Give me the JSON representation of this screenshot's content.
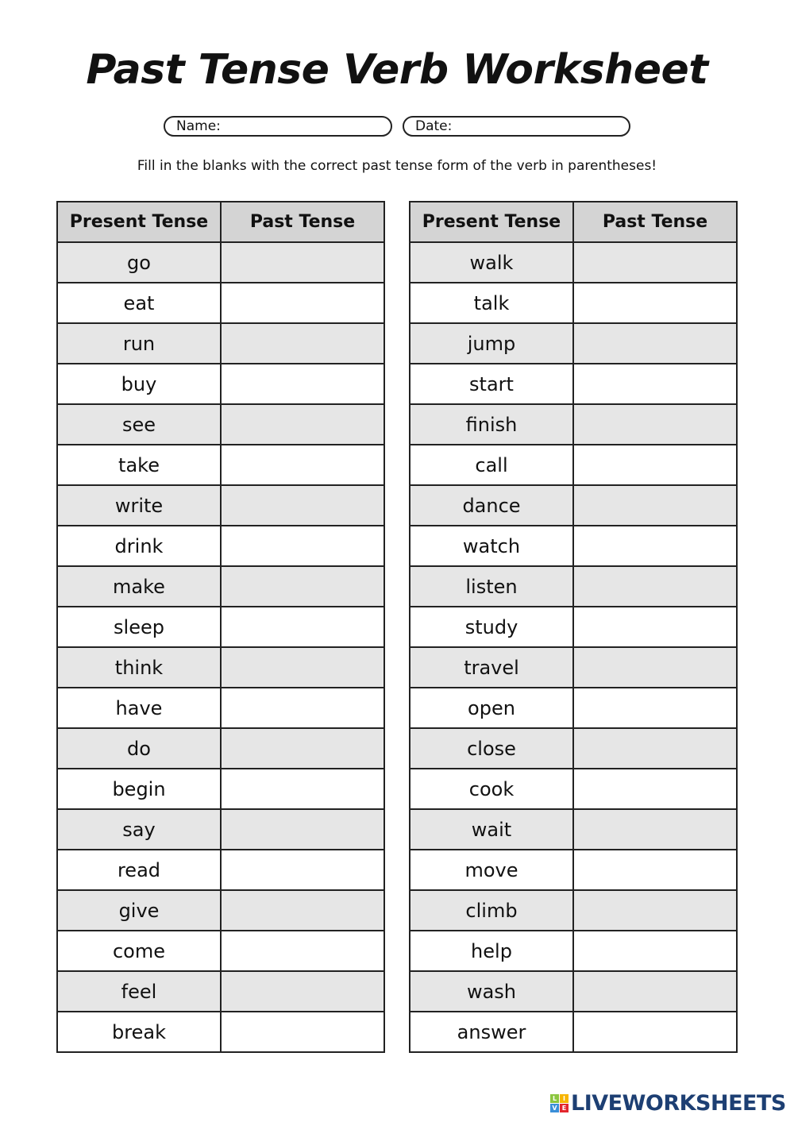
{
  "title": "Past Tense Verb Worksheet",
  "fields": {
    "name_label": "Name:",
    "date_label": "Date:"
  },
  "instructions": "Fill in the blanks with the correct past tense form of the verb in parentheses!",
  "table_headers": {
    "present": "Present Tense",
    "past": "Past Tense"
  },
  "left_verbs": [
    "go",
    "eat",
    "run",
    "buy",
    "see",
    "take",
    "write",
    "drink",
    "make",
    "sleep",
    "think",
    "have",
    "do",
    "begin",
    "say",
    "read",
    "give",
    "come",
    "feel",
    "break"
  ],
  "right_verbs": [
    "walk",
    "talk",
    "jump",
    "start",
    "finish",
    "call",
    "dance",
    "watch",
    "listen",
    "study",
    "travel",
    "open",
    "close",
    "cook",
    "wait",
    "move",
    "climb",
    "help",
    "wash",
    "answer"
  ],
  "logo": {
    "text": "LIVEWORKSHEETS",
    "blocks": [
      "L",
      "I",
      "V",
      "E"
    ],
    "block_colors": [
      "#8cc63f",
      "#f7b500",
      "#3a8fd8",
      "#e3262d"
    ],
    "text_color": "#1d3f73"
  },
  "colors": {
    "header_bg": "#d4d4d4",
    "shaded_row": "#e6e6e6"
  }
}
